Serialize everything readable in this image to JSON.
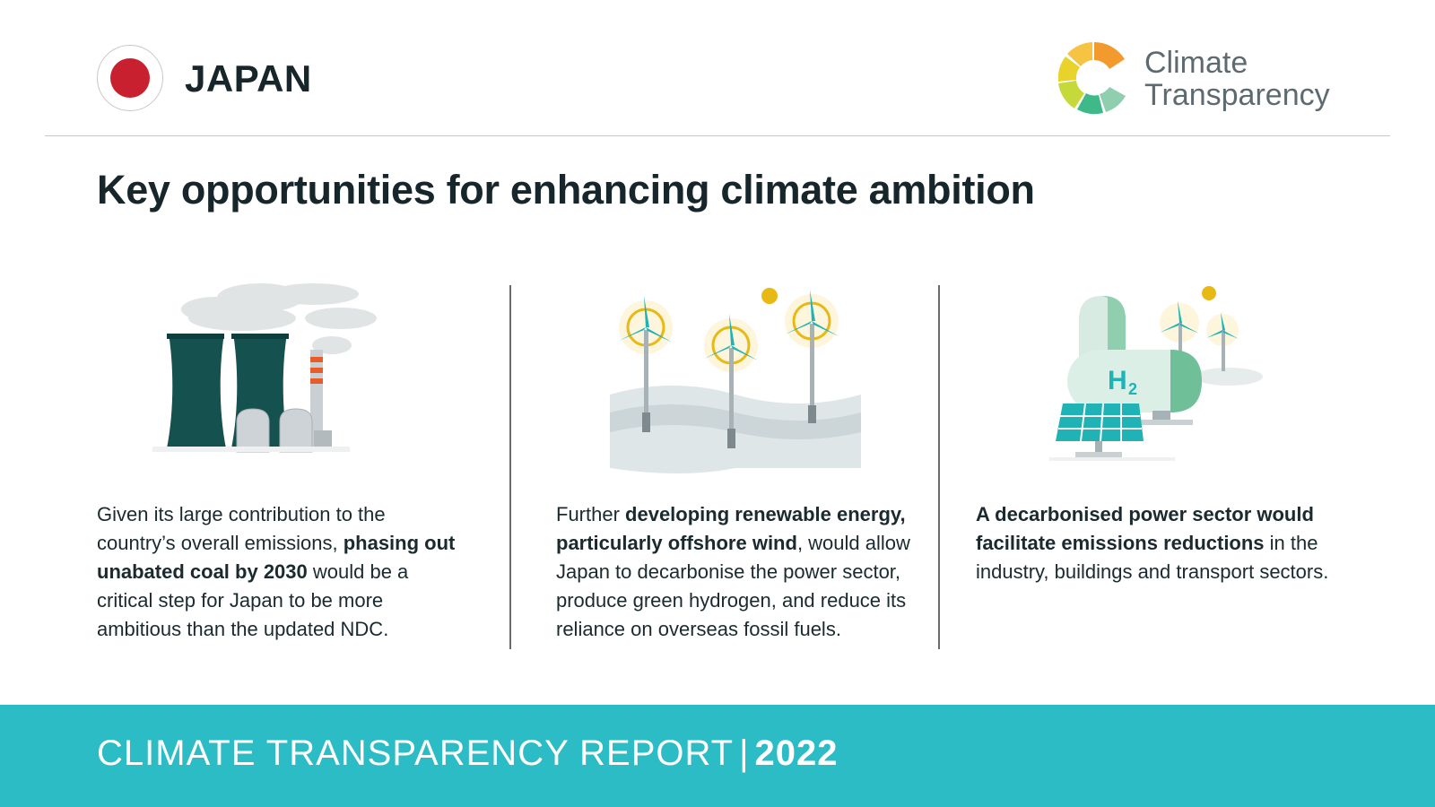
{
  "header": {
    "country": "JAPAN",
    "logo_line1": "Climate",
    "logo_line2": "Transparency"
  },
  "headline": "Key opportunities for enhancing climate ambition",
  "columns": [
    {
      "icon": "coal-power-plant-icon",
      "segments": [
        {
          "text": "Given its large contribution to the country’s overall emissions, ",
          "bold": false
        },
        {
          "text": "phasing out unabated coal by 2030",
          "bold": true
        },
        {
          "text": " would be a critical step for Japan to be more ambitious than the updated NDC.",
          "bold": false
        }
      ]
    },
    {
      "icon": "offshore-wind-turbines-icon",
      "segments": [
        {
          "text": "Further ",
          "bold": false
        },
        {
          "text": "developing renewable energy, particularly offshore wind",
          "bold": true
        },
        {
          "text": ", would allow Japan to decarbonise the power sector, produce green hydrogen, and reduce its reliance on overseas fossil fuels.",
          "bold": false
        }
      ]
    },
    {
      "icon": "hydrogen-solar-icon",
      "segments": [
        {
          "text": "A decarbonised power sector would facilitate emissions reductions",
          "bold": true
        },
        {
          "text": " in the industry, buildings and transport sectors.",
          "bold": false
        }
      ]
    }
  ],
  "h2_label": "H",
  "h2_sub": "2",
  "footer": {
    "report_label": "CLIMATE TRANSPARENCY REPORT",
    "separator": "|",
    "year": "2022"
  },
  "colors": {
    "accent": "#2bbcc5",
    "flag_red": "#c8202f",
    "dark_teal": "#14514f",
    "turbine_teal": "#1fb3b5",
    "sun_yellow": "#e8b915"
  }
}
